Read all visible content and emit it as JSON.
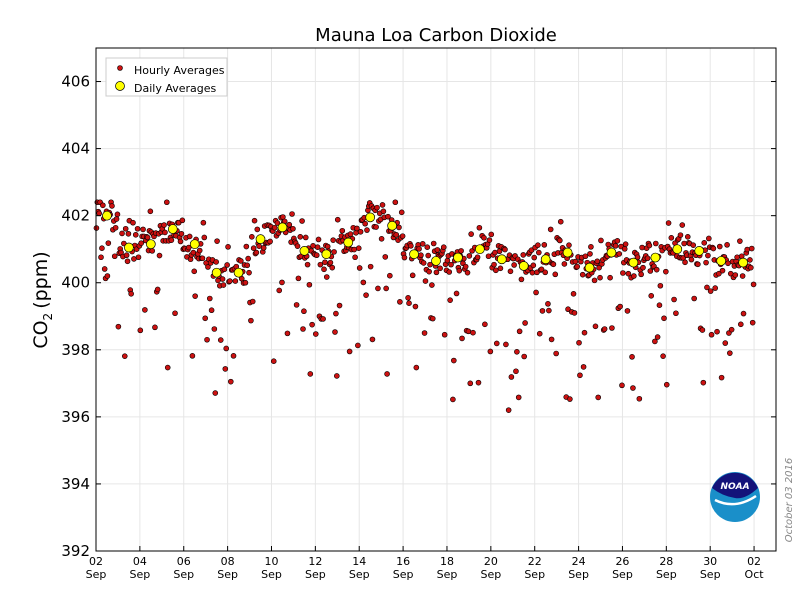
{
  "chart_data": {
    "type": "scatter",
    "title": "Mauna Loa Carbon Dioxide",
    "ylabel_main": "CO",
    "ylabel_sub": "2",
    "ylabel_unit": "(ppm)",
    "xlabel": "",
    "ylim": [
      392,
      407
    ],
    "xlim": [
      0,
      31
    ],
    "yticks": [
      "392",
      "394",
      "396",
      "398",
      "400",
      "402",
      "404",
      "406"
    ],
    "xticks": [
      {
        "day": "02",
        "month": "Sep"
      },
      {
        "day": "04",
        "month": "Sep"
      },
      {
        "day": "06",
        "month": "Sep"
      },
      {
        "day": "08",
        "month": "Sep"
      },
      {
        "day": "10",
        "month": "Sep"
      },
      {
        "day": "12",
        "month": "Sep"
      },
      {
        "day": "14",
        "month": "Sep"
      },
      {
        "day": "16",
        "month": "Sep"
      },
      {
        "day": "18",
        "month": "Sep"
      },
      {
        "day": "20",
        "month": "Sep"
      },
      {
        "day": "22",
        "month": "Sep"
      },
      {
        "day": "24",
        "month": "Sep"
      },
      {
        "day": "26",
        "month": "Sep"
      },
      {
        "day": "28",
        "month": "Sep"
      },
      {
        "day": "30",
        "month": "Sep"
      },
      {
        "day": "02",
        "month": "Oct"
      }
    ],
    "grid": true,
    "legend": [
      {
        "label": "Hourly Averages",
        "color": "#cc1111",
        "marker": "small-circle"
      },
      {
        "label": "Daily Averages",
        "color": "#ffff00",
        "marker": "large-circle"
      }
    ],
    "legend_position": "top-left",
    "annotation": "October 03 2016",
    "logo": "NOAA",
    "series": [
      {
        "name": "Daily Averages",
        "x": [
          0.5,
          1.5,
          2.5,
          3.5,
          4.5,
          5.5,
          6.5,
          7.5,
          8.5,
          9.5,
          10.5,
          11.5,
          12.5,
          13.5,
          14.5,
          15.5,
          16.5,
          17.5,
          18.5,
          19.5,
          20.5,
          21.5,
          22.5,
          23.5,
          24.5,
          25.5,
          26.5,
          27.5,
          28.5,
          29.5
        ],
        "y": [
          402.0,
          401.05,
          401.15,
          401.6,
          401.15,
          400.3,
          400.3,
          401.3,
          401.65,
          400.95,
          400.85,
          401.2,
          401.95,
          401.7,
          400.85,
          400.65,
          400.75,
          401.0,
          400.7,
          400.5,
          400.7,
          400.9,
          400.45,
          400.9,
          400.6,
          400.75,
          401.0,
          400.95,
          400.65,
          400.6
        ]
      },
      {
        "name": "Hourly Averages",
        "x": [],
        "y": []
      }
    ]
  },
  "colors": {
    "hourly": "#cc1111",
    "daily": "#ffff00",
    "grid": "#e6e6e6",
    "noaa_dark": "#13137a",
    "noaa_light": "#1a8fc9"
  }
}
